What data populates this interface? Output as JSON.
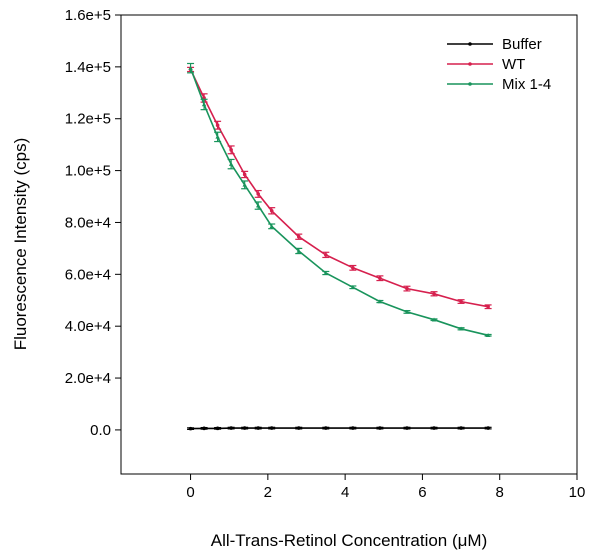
{
  "chart_data": {
    "type": "line",
    "title": "",
    "xlabel": "All-Trans-Retinol Concentration (μM)",
    "ylabel": "Fluorescence Intensity (cps)",
    "xlim": [
      -1.8,
      10
    ],
    "ylim": [
      -17000,
      160000
    ],
    "x_ticks": [
      0,
      2,
      4,
      6,
      8,
      10
    ],
    "x_tick_labels": [
      "0",
      "2",
      "4",
      "6",
      "8",
      "10"
    ],
    "y_ticks": [
      0,
      20000,
      40000,
      60000,
      80000,
      100000,
      120000,
      140000,
      160000
    ],
    "y_tick_labels": [
      "0.0",
      "2.0e+4",
      "4.0e+4",
      "6.0e+4",
      "8.0e+4",
      "1.0e+5",
      "1.2e+5",
      "1.4e+5",
      "1.6e+5"
    ],
    "grid": false,
    "legend_position": "top-right",
    "x": [
      0,
      0.35,
      0.7,
      1.05,
      1.4,
      1.75,
      2.1,
      2.8,
      3.5,
      4.2,
      4.9,
      5.6,
      6.3,
      7.0,
      7.7
    ],
    "series": [
      {
        "name": "Buffer",
        "color": "#000000",
        "marker": "circle",
        "values": [
          500,
          600,
          600,
          700,
          700,
          700,
          700,
          700,
          700,
          700,
          700,
          700,
          700,
          700,
          700
        ],
        "errors": [
          300,
          300,
          300,
          300,
          300,
          300,
          300,
          300,
          300,
          300,
          300,
          300,
          300,
          300,
          300
        ]
      },
      {
        "name": "WT",
        "color": "#d6204e",
        "marker": "circle",
        "values": [
          139000,
          128000,
          117500,
          108000,
          98500,
          91000,
          84500,
          74500,
          67500,
          62500,
          58500,
          54500,
          52500,
          49500,
          47500
        ],
        "errors": [
          800,
          1600,
          1500,
          1500,
          1200,
          1300,
          1200,
          1000,
          1000,
          900,
          900,
          900,
          800,
          700,
          700
        ]
      },
      {
        "name": "Mix 1-4",
        "color": "#19945c",
        "marker": "triangle",
        "values": [
          139500,
          125500,
          113000,
          102500,
          94500,
          86500,
          78500,
          69000,
          60500,
          55000,
          49500,
          45500,
          42500,
          39000,
          36500
        ],
        "errors": [
          1800,
          2000,
          1800,
          1800,
          1500,
          1400,
          900,
          1000,
          600,
          500,
          400,
          500,
          300,
          400,
          300
        ]
      }
    ]
  }
}
